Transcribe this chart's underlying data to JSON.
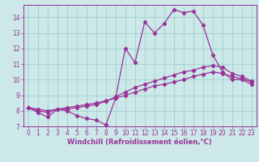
{
  "xlabel": "Windchill (Refroidissement éolien,°C)",
  "x_values": [
    0,
    1,
    2,
    3,
    4,
    5,
    6,
    7,
    8,
    9,
    10,
    11,
    12,
    13,
    14,
    15,
    16,
    17,
    18,
    19,
    20,
    21,
    22,
    23
  ],
  "line1_y": [
    8.2,
    7.9,
    7.6,
    8.1,
    8.0,
    7.7,
    7.5,
    7.4,
    7.1,
    8.8,
    12.0,
    11.1,
    13.7,
    13.0,
    13.6,
    14.5,
    14.3,
    14.4,
    13.5,
    11.6,
    10.5,
    10.0,
    10.0,
    9.7
  ],
  "line2_y": [
    8.2,
    8.0,
    7.9,
    8.1,
    8.1,
    8.2,
    8.3,
    8.4,
    8.6,
    8.9,
    9.2,
    9.5,
    9.7,
    9.9,
    10.1,
    10.3,
    10.5,
    10.6,
    10.8,
    10.9,
    10.8,
    10.4,
    10.2,
    9.9
  ],
  "line3_y": [
    8.2,
    8.1,
    8.0,
    8.1,
    8.2,
    8.3,
    8.4,
    8.5,
    8.65,
    8.8,
    9.0,
    9.2,
    9.4,
    9.6,
    9.7,
    9.85,
    10.0,
    10.2,
    10.35,
    10.5,
    10.4,
    10.2,
    10.05,
    9.85
  ],
  "line_color": "#993399",
  "bg_color": "#cce8e8",
  "grid_color": "#99cccc",
  "ylim": [
    7,
    14.8
  ],
  "xlim": [
    -0.5,
    23.5
  ],
  "yticks": [
    7,
    8,
    9,
    10,
    11,
    12,
    13,
    14
  ],
  "marker": "D",
  "marker_size": 2.2,
  "line_width": 0.9,
  "tick_fontsize": 5.5,
  "label_fontsize": 6.0
}
